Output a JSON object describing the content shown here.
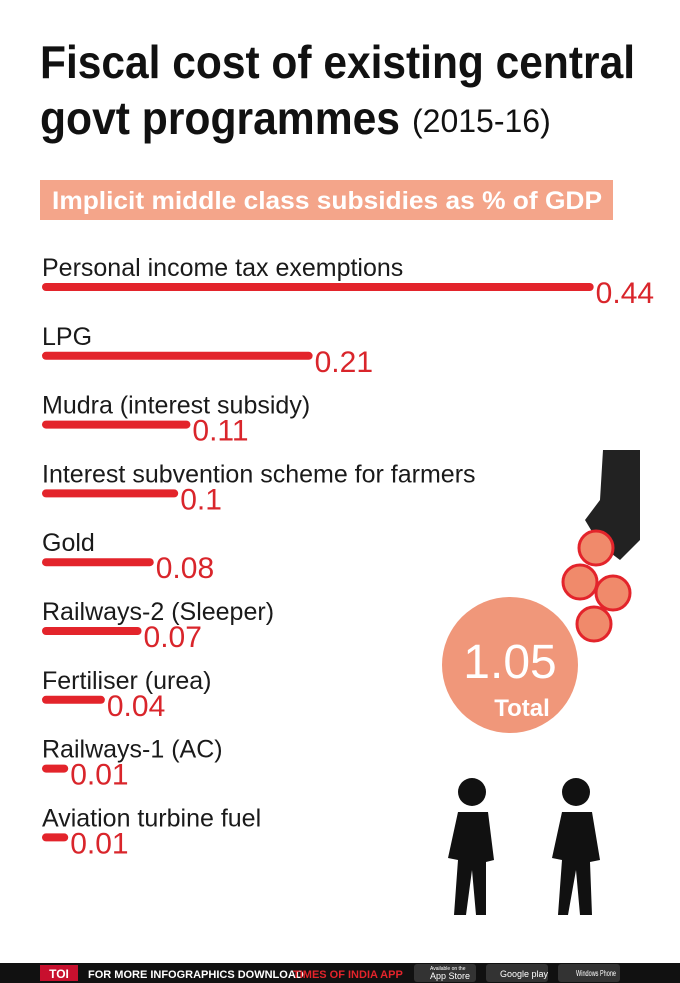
{
  "chart_data": {
    "type": "bar",
    "title": "Fiscal cost of existing central govt programmes",
    "title_year": "(2015-16)",
    "subtitle": "Implicit middle class subsidies as % of GDP",
    "categories": [
      "Personal income tax exemptions",
      "LPG",
      "Mudra (interest subsidy)",
      "Interest subvention scheme for farmers",
      "Gold",
      "Railways-2 (Sleeper)",
      "Fertiliser (urea)",
      "Railways-1 (AC)",
      "Aviation turbine fuel"
    ],
    "values": [
      0.44,
      0.21,
      0.11,
      0.1,
      0.08,
      0.07,
      0.04,
      0.01,
      0.01
    ],
    "color": "#e3242b",
    "total": 1.05,
    "total_label": "Total"
  },
  "footer": {
    "brand": "TOI",
    "text": "FOR MORE INFOGRAPHICS DOWNLOAD",
    "app": "TIMES OF INDIA APP",
    "app_store": "App Store",
    "app_store_small": "Available on the",
    "google_play": "Google play",
    "windows": "Windows Phone"
  }
}
